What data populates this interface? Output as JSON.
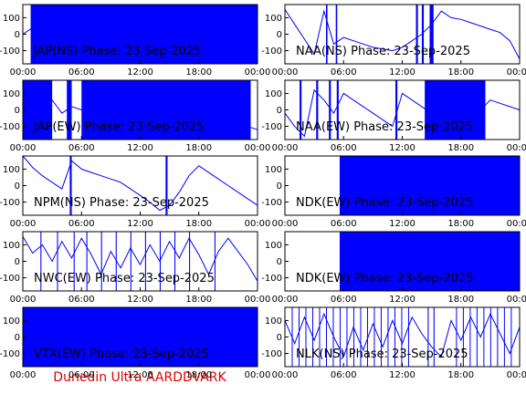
{
  "caption": "Dunedin Ultra AARDDVARK",
  "chart_data": [
    {
      "type": "line",
      "label": "JAP(NS) Phase: 23-Sep-2025",
      "color": "#0000ff",
      "x": [
        0,
        1,
        2,
        3,
        4,
        5,
        6,
        7,
        8,
        9,
        10,
        11,
        12,
        13,
        14,
        15,
        16,
        17,
        18,
        19,
        20,
        21,
        22,
        23,
        24
      ],
      "values": [
        0,
        40,
        60,
        80,
        100,
        120,
        0,
        0,
        0,
        0,
        0,
        0,
        0,
        0,
        0,
        0,
        0,
        0,
        0,
        0,
        0,
        0,
        0,
        0,
        0
      ],
      "dense": [
        [
          0.8,
          24
        ]
      ],
      "xlim": [
        0,
        24
      ],
      "ylim": [
        -180,
        180
      ],
      "xticks": [
        {
          "value": 0,
          "label": "00:00"
        },
        {
          "value": 6,
          "label": "06:00"
        },
        {
          "value": 12,
          "label": "12:00"
        },
        {
          "value": 18,
          "label": "18:00"
        },
        {
          "value": 24,
          "label": "00:00"
        }
      ],
      "yticks": [
        -100,
        0,
        100
      ]
    },
    {
      "type": "line",
      "label": "NAA(NS) Phase: 23-Sep-2025",
      "color": "#0000ff",
      "x": [
        0,
        1,
        2,
        3,
        4,
        5,
        6,
        7,
        8,
        9,
        10,
        11,
        12,
        13,
        14,
        15,
        16,
        17,
        18,
        19,
        20,
        21,
        22,
        23,
        24
      ],
      "values": [
        150,
        60,
        -30,
        -120,
        140,
        -60,
        -20,
        -40,
        -60,
        -80,
        -90,
        -100,
        -80,
        -40,
        0,
        60,
        140,
        100,
        90,
        70,
        50,
        30,
        10,
        -40,
        -150
      ],
      "dense": [
        [
          4.2,
          4.35
        ],
        [
          5.2,
          5.35
        ],
        [
          13.4,
          13.6
        ],
        [
          14,
          14.2
        ],
        [
          14.8,
          15.2
        ]
      ],
      "xlim": [
        0,
        24
      ],
      "ylim": [
        -180,
        180
      ],
      "xticks": [
        {
          "value": 0,
          "label": "00:00"
        },
        {
          "value": 6,
          "label": "06:00"
        },
        {
          "value": 12,
          "label": "12:00"
        },
        {
          "value": 18,
          "label": "18:00"
        },
        {
          "value": 24,
          "label": "00:00"
        }
      ],
      "yticks": [
        -100,
        0,
        100
      ]
    },
    {
      "type": "line",
      "label": "JAP(EW) Phase: 23-Sep-2025",
      "color": "#0000ff",
      "x": [
        0,
        1,
        2,
        3,
        4,
        5,
        6,
        7,
        8,
        9,
        10,
        11,
        12,
        13,
        14,
        15,
        16,
        17,
        18,
        19,
        20,
        21,
        22,
        23,
        24
      ],
      "values": [
        -20,
        40,
        -60,
        60,
        -20,
        20,
        0,
        0,
        0,
        0,
        0,
        0,
        0,
        0,
        0,
        0,
        0,
        0,
        0,
        0,
        0,
        0,
        0,
        -100,
        -120
      ],
      "dense": [
        [
          0,
          3
        ],
        [
          4.5,
          5
        ],
        [
          6,
          23.3
        ]
      ],
      "xlim": [
        0,
        24
      ],
      "ylim": [
        -180,
        180
      ],
      "xticks": [
        {
          "value": 0,
          "label": "00:00"
        },
        {
          "value": 6,
          "label": "06:00"
        },
        {
          "value": 12,
          "label": "12:00"
        },
        {
          "value": 18,
          "label": "18:00"
        },
        {
          "value": 24,
          "label": "00:00"
        }
      ],
      "yticks": [
        -100,
        0,
        100
      ]
    },
    {
      "type": "line",
      "label": "NAA(EW) Phase: 23-Sep-2025",
      "color": "#0000ff",
      "x": [
        0,
        1,
        2,
        3,
        4,
        5,
        6,
        7,
        8,
        9,
        10,
        11,
        12,
        13,
        14,
        15,
        16,
        17,
        18,
        19,
        20,
        21,
        22,
        23,
        24
      ],
      "values": [
        -20,
        -100,
        -160,
        120,
        60,
        -20,
        100,
        60,
        20,
        -20,
        -60,
        -100,
        100,
        60,
        20,
        -20,
        0,
        0,
        0,
        0,
        0,
        60,
        40,
        20,
        0
      ],
      "dense": [
        [
          1.5,
          1.7
        ],
        [
          3.2,
          3.4
        ],
        [
          4.5,
          4.7
        ],
        [
          5.3,
          5.5
        ],
        [
          11.3,
          11.5
        ],
        [
          14.3,
          20.5
        ]
      ],
      "xlim": [
        0,
        24
      ],
      "ylim": [
        -180,
        180
      ],
      "xticks": [
        {
          "value": 0,
          "label": "00:00"
        },
        {
          "value": 6,
          "label": "06:00"
        },
        {
          "value": 12,
          "label": "12:00"
        },
        {
          "value": 18,
          "label": "18:00"
        },
        {
          "value": 24,
          "label": "00:00"
        }
      ],
      "yticks": [
        -100,
        0,
        100
      ]
    },
    {
      "type": "line",
      "label": "NPM(NS) Phase: 23-Sep-2025",
      "color": "#0000ff",
      "x": [
        0,
        1,
        2,
        3,
        4,
        5,
        6,
        7,
        8,
        9,
        10,
        11,
        12,
        13,
        14,
        15,
        16,
        17,
        18,
        19,
        20,
        21,
        22,
        23,
        24
      ],
      "values": [
        180,
        110,
        60,
        20,
        -20,
        150,
        100,
        80,
        60,
        40,
        20,
        -20,
        -60,
        -100,
        -150,
        -120,
        -40,
        60,
        120,
        80,
        40,
        0,
        -40,
        -80,
        -120
      ],
      "dense": [
        [
          4.8,
          5.0
        ],
        [
          14.6,
          14.8
        ]
      ],
      "xlim": [
        0,
        24
      ],
      "ylim": [
        -180,
        180
      ],
      "xticks": [
        {
          "value": 0,
          "label": "00:00"
        },
        {
          "value": 6,
          "label": "06:00"
        },
        {
          "value": 12,
          "label": "12:00"
        },
        {
          "value": 18,
          "label": "18:00"
        },
        {
          "value": 24,
          "label": "00:00"
        }
      ],
      "yticks": [
        -100,
        0,
        100
      ]
    },
    {
      "type": "line",
      "label": "NDK(EW) Phase: 23-Sep-2025",
      "color": "#0000ff",
      "x": [
        0,
        1,
        2,
        3,
        4,
        5,
        6,
        7,
        8,
        9,
        10,
        11,
        12,
        13,
        14,
        15,
        16,
        17,
        18,
        19,
        20,
        21,
        22,
        23,
        24
      ],
      "values": [
        null,
        null,
        null,
        null,
        null,
        null,
        0,
        0,
        0,
        0,
        0,
        0,
        0,
        0,
        0,
        0,
        0,
        0,
        0,
        0,
        0,
        0,
        0,
        0,
        0
      ],
      "dense": [
        [
          5.6,
          24
        ]
      ],
      "xlim": [
        0,
        24
      ],
      "ylim": [
        -180,
        180
      ],
      "xticks": [
        {
          "value": 0,
          "label": "00:00"
        },
        {
          "value": 6,
          "label": "06:00"
        },
        {
          "value": 12,
          "label": "12:00"
        },
        {
          "value": 18,
          "label": "18:00"
        },
        {
          "value": 24,
          "label": "00:00"
        }
      ],
      "yticks": [
        -100,
        0,
        100
      ]
    },
    {
      "type": "line",
      "label": "NWC(EW) Phase: 23-Sep-2025",
      "color": "#0000ff",
      "x": [
        0,
        1,
        2,
        3,
        4,
        5,
        6,
        7,
        8,
        9,
        10,
        11,
        12,
        13,
        14,
        15,
        16,
        17,
        18,
        19,
        20,
        21,
        22,
        23,
        24
      ],
      "values": [
        150,
        50,
        100,
        0,
        120,
        20,
        140,
        40,
        -80,
        60,
        -40,
        80,
        -20,
        100,
        0,
        120,
        20,
        140,
        40,
        -80,
        60,
        140,
        60,
        -20,
        -120
      ],
      "dense": [
        [
          1.8,
          1.9
        ],
        [
          3.5,
          3.6
        ],
        [
          5.2,
          5.3
        ],
        [
          6.5,
          6.6
        ],
        [
          8,
          8.1
        ],
        [
          9.5,
          9.6
        ],
        [
          11,
          11.1
        ],
        [
          12.5,
          12.6
        ],
        [
          14,
          14.1
        ],
        [
          15.5,
          15.6
        ],
        [
          17,
          17.1
        ],
        [
          19.6,
          19.7
        ]
      ],
      "xlim": [
        0,
        24
      ],
      "ylim": [
        -180,
        180
      ],
      "xticks": [
        {
          "value": 0,
          "label": "00:00"
        },
        {
          "value": 6,
          "label": "06:00"
        },
        {
          "value": 12,
          "label": "12:00"
        },
        {
          "value": 18,
          "label": "18:00"
        },
        {
          "value": 24,
          "label": "00:00"
        }
      ],
      "yticks": [
        -100,
        0,
        100
      ]
    },
    {
      "type": "line",
      "label": "NDK(EW) Phase: 23-Sep-2025",
      "color": "#0000ff",
      "x": [
        0,
        1,
        2,
        3,
        4,
        5,
        6,
        7,
        8,
        9,
        10,
        11,
        12,
        13,
        14,
        15,
        16,
        17,
        18,
        19,
        20,
        21,
        22,
        23,
        24
      ],
      "values": [
        null,
        null,
        null,
        null,
        null,
        null,
        0,
        0,
        0,
        0,
        0,
        0,
        0,
        0,
        0,
        0,
        0,
        0,
        0,
        0,
        0,
        0,
        0,
        0,
        0
      ],
      "dense": [
        [
          5.6,
          24
        ]
      ],
      "xlim": [
        0,
        24
      ],
      "ylim": [
        -180,
        180
      ],
      "xticks": [
        {
          "value": 0,
          "label": "00:00"
        },
        {
          "value": 6,
          "label": "06:00"
        },
        {
          "value": 12,
          "label": "12:00"
        },
        {
          "value": 18,
          "label": "18:00"
        },
        {
          "value": 24,
          "label": "00:00"
        }
      ],
      "yticks": [
        -100,
        0,
        100
      ]
    },
    {
      "type": "line",
      "label": "VTX(EW) Phase: 23-Sep-2025",
      "color": "#0000ff",
      "x": [
        0,
        1,
        2,
        3,
        4,
        5,
        6,
        7,
        8,
        9,
        10,
        11,
        12,
        13,
        14,
        15,
        16,
        17,
        18,
        19,
        20,
        21,
        22,
        23,
        24
      ],
      "values": [
        0,
        0,
        0,
        0,
        0,
        0,
        0,
        0,
        0,
        0,
        0,
        0,
        0,
        0,
        0,
        0,
        0,
        0,
        0,
        0,
        0,
        0,
        0,
        0,
        0
      ],
      "dense": [
        [
          0,
          24
        ]
      ],
      "xlim": [
        0,
        24
      ],
      "ylim": [
        -180,
        180
      ],
      "xticks": [
        {
          "value": 0,
          "label": "00:00"
        },
        {
          "value": 6,
          "label": "06:00"
        },
        {
          "value": 12,
          "label": "12:00"
        },
        {
          "value": 18,
          "label": "18:00"
        },
        {
          "value": 24,
          "label": "00:00"
        }
      ],
      "yticks": [
        -100,
        0,
        100
      ]
    },
    {
      "type": "line",
      "label": "NLK(NS) Phase: 23-Sep-2025",
      "color": "#0000ff",
      "x": [
        0,
        1,
        2,
        3,
        4,
        5,
        6,
        7,
        8,
        9,
        10,
        11,
        12,
        13,
        14,
        15,
        16,
        17,
        18,
        19,
        20,
        21,
        22,
        23,
        24
      ],
      "values": [
        100,
        -40,
        120,
        -20,
        140,
        0,
        -120,
        60,
        -80,
        80,
        -60,
        100,
        -40,
        120,
        20,
        -60,
        -120,
        100,
        -20,
        120,
        0,
        140,
        20,
        -100,
        60
      ],
      "dense": [
        [
          0.7,
          0.75
        ],
        [
          1.4,
          1.45
        ],
        [
          2.1,
          2.15
        ],
        [
          2.8,
          2.85
        ],
        [
          3.5,
          3.55
        ],
        [
          4.2,
          4.25
        ],
        [
          4.9,
          4.95
        ],
        [
          5.6,
          5.65
        ],
        [
          6.3,
          6.35
        ],
        [
          7,
          7.05
        ],
        [
          7.7,
          7.75
        ],
        [
          8.4,
          8.45
        ],
        [
          9.1,
          9.15
        ],
        [
          9.8,
          9.85
        ],
        [
          10.5,
          10.55
        ],
        [
          11.2,
          11.25
        ],
        [
          11.9,
          11.95
        ],
        [
          12.6,
          12.65
        ],
        [
          14.6,
          14.7
        ],
        [
          15.2,
          15.3
        ],
        [
          17.5,
          17.55
        ],
        [
          18.2,
          18.25
        ],
        [
          18.9,
          18.95
        ],
        [
          19.6,
          19.65
        ],
        [
          20.3,
          20.35
        ],
        [
          21,
          21.05
        ],
        [
          21.7,
          21.75
        ],
        [
          22.4,
          22.45
        ],
        [
          23.1,
          23.15
        ]
      ],
      "xlim": [
        0,
        24
      ],
      "ylim": [
        -180,
        180
      ],
      "xticks": [
        {
          "value": 0,
          "label": "00:00"
        },
        {
          "value": 6,
          "label": "06:00"
        },
        {
          "value": 12,
          "label": "12:00"
        },
        {
          "value": 18,
          "label": "18:00"
        },
        {
          "value": 24,
          "label": "00:00"
        }
      ],
      "yticks": [
        -100,
        0,
        100
      ]
    }
  ]
}
